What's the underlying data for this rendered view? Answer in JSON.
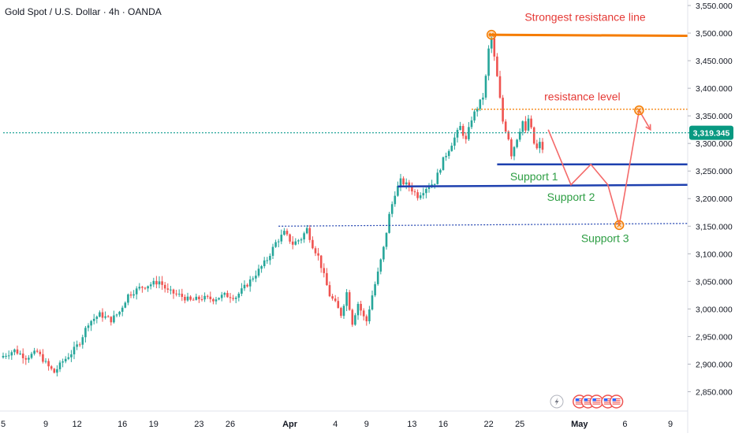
{
  "header": {
    "title": "Gold Spot / U.S. Dollar · 4h · OANDA"
  },
  "chart_data": {
    "type": "candlestick",
    "symbol": "Gold Spot / U.S. Dollar",
    "timeframe": "4h",
    "source": "OANDA",
    "last_price": 3319.345,
    "last_price_label": "3,319.345",
    "ylim": [
      2815,
      3560
    ],
    "y_ticks": [
      {
        "value": 3550,
        "label": "3,550.000"
      },
      {
        "value": 3500,
        "label": "3,500.000"
      },
      {
        "value": 3450,
        "label": "3,450.000"
      },
      {
        "value": 3400,
        "label": "3,400.000"
      },
      {
        "value": 3350,
        "label": "3,350.000"
      },
      {
        "value": 3300,
        "label": "3,300.000"
      },
      {
        "value": 3250,
        "label": "3,250.000"
      },
      {
        "value": 3200,
        "label": "3,200.000"
      },
      {
        "value": 3150,
        "label": "3,150.000"
      },
      {
        "value": 3100,
        "label": "3,100.000"
      },
      {
        "value": 3050,
        "label": "3,050.000"
      },
      {
        "value": 3000,
        "label": "3,000.000"
      },
      {
        "value": 2950,
        "label": "2,950.000"
      },
      {
        "value": 2900,
        "label": "2,900.000"
      },
      {
        "value": 2850,
        "label": "2,850.000"
      }
    ],
    "x_ticks": [
      {
        "bar": 0,
        "label": "5"
      },
      {
        "bar": 15,
        "label": "9"
      },
      {
        "bar": 26,
        "label": "12"
      },
      {
        "bar": 42,
        "label": "16"
      },
      {
        "bar": 53,
        "label": "19"
      },
      {
        "bar": 69,
        "label": "23"
      },
      {
        "bar": 80,
        "label": "26"
      },
      {
        "bar": 101,
        "label": "Apr"
      },
      {
        "bar": 117,
        "label": "4"
      },
      {
        "bar": 128,
        "label": "9"
      },
      {
        "bar": 144,
        "label": "13"
      },
      {
        "bar": 155,
        "label": "16"
      },
      {
        "bar": 171,
        "label": "22"
      },
      {
        "bar": 182,
        "label": "25"
      },
      {
        "bar": 203,
        "label": "May"
      },
      {
        "bar": 219,
        "label": "6"
      },
      {
        "bar": 235,
        "label": "9"
      }
    ],
    "price_anchors": [
      [
        0,
        2915
      ],
      [
        4,
        2925
      ],
      [
        8,
        2912
      ],
      [
        12,
        2922
      ],
      [
        16,
        2895
      ],
      [
        18,
        2885
      ],
      [
        21,
        2905
      ],
      [
        24,
        2920
      ],
      [
        27,
        2940
      ],
      [
        30,
        2975
      ],
      [
        34,
        2990
      ],
      [
        38,
        2980
      ],
      [
        41,
        2995
      ],
      [
        44,
        3025
      ],
      [
        48,
        3038
      ],
      [
        52,
        3045
      ],
      [
        55,
        3050
      ],
      [
        58,
        3032
      ],
      [
        62,
        3025
      ],
      [
        66,
        3015
      ],
      [
        70,
        3020
      ],
      [
        74,
        3018
      ],
      [
        78,
        3025
      ],
      [
        82,
        3022
      ],
      [
        86,
        3045
      ],
      [
        90,
        3070
      ],
      [
        93,
        3090
      ],
      [
        96,
        3120
      ],
      [
        99,
        3138
      ],
      [
        102,
        3118
      ],
      [
        105,
        3128
      ],
      [
        107,
        3145
      ],
      [
        109,
        3115
      ],
      [
        111,
        3095
      ],
      [
        113,
        3060
      ],
      [
        115,
        3025
      ],
      [
        117,
        3010
      ],
      [
        119,
        2990
      ],
      [
        121,
        3030
      ],
      [
        123,
        2975
      ],
      [
        125,
        3010
      ],
      [
        127,
        2985
      ],
      [
        128,
        2978
      ],
      [
        130,
        3025
      ],
      [
        132,
        3065
      ],
      [
        134,
        3110
      ],
      [
        136,
        3170
      ],
      [
        138,
        3210
      ],
      [
        140,
        3232
      ],
      [
        143,
        3222
      ],
      [
        146,
        3205
      ],
      [
        149,
        3220
      ],
      [
        152,
        3230
      ],
      [
        155,
        3270
      ],
      [
        158,
        3300
      ],
      [
        161,
        3330
      ],
      [
        163,
        3305
      ],
      [
        165,
        3345
      ],
      [
        167,
        3365
      ],
      [
        169,
        3385
      ],
      [
        170,
        3420
      ],
      [
        171,
        3470
      ],
      [
        172,
        3490
      ],
      [
        173,
        3455
      ],
      [
        174,
        3420
      ],
      [
        175,
        3380
      ],
      [
        176,
        3340
      ],
      [
        178,
        3310
      ],
      [
        179,
        3280
      ],
      [
        181,
        3310
      ],
      [
        183,
        3340
      ],
      [
        184,
        3320
      ],
      [
        185,
        3345
      ],
      [
        186,
        3325
      ],
      [
        187,
        3300
      ],
      [
        188,
        3290
      ],
      [
        189,
        3300
      ],
      [
        190,
        3290
      ]
    ],
    "annotations": [
      {
        "id": "strongest-resistance",
        "label": "Strongest resistance line",
        "style": "solid",
        "color": "#f57c00",
        "text_color": "#e53935",
        "x1": 171,
        "y1": 3497,
        "x2": 241,
        "y2": 3495,
        "text_bar": 205,
        "text_price": 3522
      },
      {
        "id": "resistance-level",
        "label": "resistance level",
        "style": "dotted",
        "color": "#f57c00",
        "text_color": "#e53935",
        "x1": 165,
        "y1": 3362,
        "x2": 241,
        "y2": 3362,
        "text_bar": 204,
        "text_price": 3378
      },
      {
        "id": "support-1",
        "label": "Support 1",
        "style": "solid",
        "color": "#1e40af",
        "text_color": "#2e9e44",
        "x1": 174,
        "y1": 3262,
        "x2": 241,
        "y2": 3262,
        "text_bar": 187,
        "text_price": 3233
      },
      {
        "id": "support-2",
        "label": "Support 2",
        "style": "solid",
        "color": "#1e40af",
        "text_color": "#2e9e44",
        "x1": 139,
        "y1": 3222,
        "x2": 241,
        "y2": 3225,
        "text_bar": 200,
        "text_price": 3196
      },
      {
        "id": "support-3",
        "label": "Support 3",
        "style": "dotted",
        "color": "#1e40af",
        "text_color": "#2e9e44",
        "x1": 97,
        "y1": 3150,
        "x2": 241,
        "y2": 3155,
        "text_bar": 212,
        "text_price": 3121
      },
      {
        "id": "current-price",
        "label": "",
        "style": "dotted",
        "color": "#26a69a",
        "text_color": "#26a69a",
        "x1": 0,
        "y1": 3319.345,
        "x2": 248,
        "y2": 3319.345,
        "text_bar": 0,
        "text_price": 0
      }
    ],
    "projection": [
      [
        192,
        3325
      ],
      [
        200,
        3225
      ],
      [
        207,
        3262
      ],
      [
        213,
        3225
      ],
      [
        217,
        3152
      ],
      [
        224,
        3360
      ],
      [
        228,
        3325
      ]
    ],
    "projection_color": "#f46a6a",
    "markers": [
      [
        172,
        3497
      ],
      [
        217,
        3152
      ],
      [
        224,
        3360
      ]
    ],
    "colors": {
      "up": "#26a69a",
      "down": "#ef5350",
      "last_price_bg": "#089981",
      "axis_text": "#131722"
    },
    "event_icons": [
      {
        "icon": "lightning-icon",
        "bar": 195
      },
      {
        "icon": "us-flag-icon",
        "bar": 203
      },
      {
        "icon": "us-flag-icon",
        "bar": 206
      },
      {
        "icon": "us-flag-icon",
        "bar": 209
      },
      {
        "icon": "us-flag-icon",
        "bar": 213
      },
      {
        "icon": "us-flag-icon",
        "bar": 216
      }
    ]
  }
}
